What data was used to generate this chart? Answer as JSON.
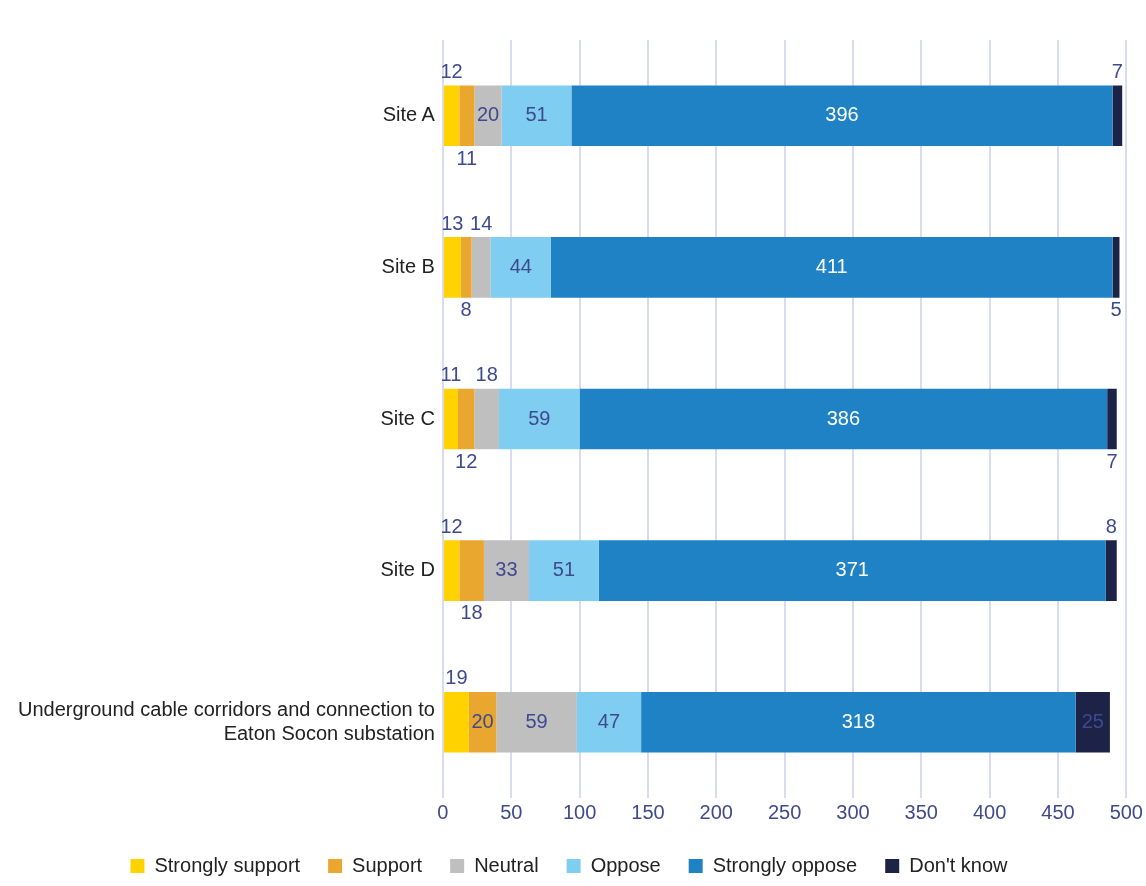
{
  "chart_data": {
    "type": "bar",
    "orientation": "horizontal",
    "stacked": true,
    "data_labels": true,
    "grid": "x",
    "legend": "bottom",
    "categories": [
      "Site A",
      "Site B",
      "Site C",
      "Site D",
      "Underground cable corridors and connection to Eaton Socon substation"
    ],
    "xlim": [
      0,
      500
    ],
    "xticks": [
      0,
      50,
      100,
      150,
      200,
      250,
      300,
      350,
      400,
      450,
      500
    ],
    "series": [
      {
        "name": "Strongly support",
        "color": "#ffd200",
        "values": [
          12,
          13,
          11,
          12,
          19
        ]
      },
      {
        "name": "Support",
        "color": "#e9a72f",
        "values": [
          11,
          8,
          12,
          18,
          20
        ]
      },
      {
        "name": "Neutral",
        "color": "#bfbfbf",
        "values": [
          20,
          14,
          18,
          33,
          59
        ]
      },
      {
        "name": "Oppose",
        "color": "#7fcdf0",
        "values": [
          51,
          44,
          59,
          51,
          47
        ]
      },
      {
        "name": "Strongly oppose",
        "color": "#1f82c4",
        "values": [
          396,
          411,
          386,
          371,
          318
        ]
      },
      {
        "name": "Don't know",
        "color": "#1d2247",
        "values": [
          7,
          5,
          7,
          8,
          25
        ]
      }
    ]
  }
}
